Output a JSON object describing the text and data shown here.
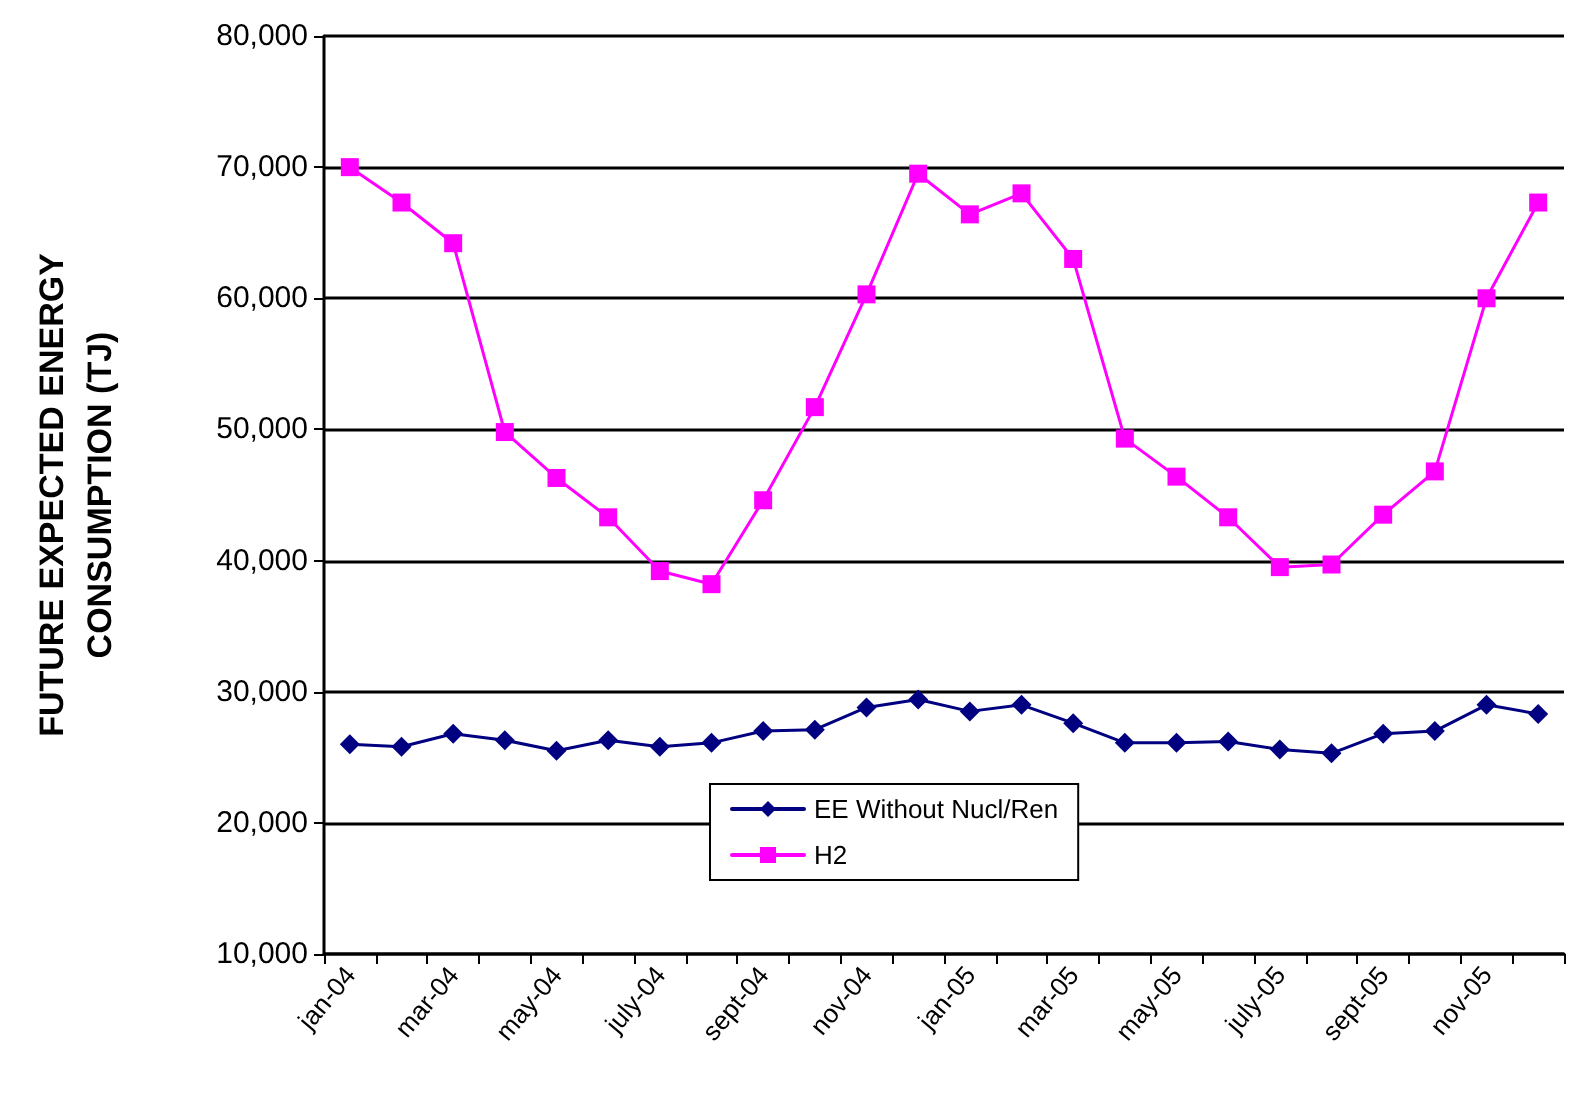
{
  "chart_data": {
    "type": "line",
    "ylabel": "FUTURE EXPECTED ENERGY\nCONSUMPTION (TJ)",
    "categories": [
      "jan-04",
      null,
      "mar-04",
      null,
      "may-04",
      null,
      "july-04",
      null,
      "sept-04",
      null,
      "nov-04",
      null,
      "jan-05",
      null,
      "mar-05",
      null,
      "may-05",
      null,
      "july-05",
      null,
      "sept-05",
      null,
      "nov-05",
      null
    ],
    "series": [
      {
        "name": "EE Without Nucl/Ren",
        "color": "#000080",
        "marker": "diamond",
        "values": [
          26000,
          25800,
          26800,
          26300,
          25500,
          26300,
          25800,
          26100,
          27000,
          27100,
          28800,
          29400,
          28500,
          29000,
          27600,
          26100,
          26100,
          26200,
          25600,
          25300,
          26800,
          27000,
          29000,
          28300
        ]
      },
      {
        "name": "H2",
        "color": "#ff00ff",
        "marker": "square",
        "values": [
          70000,
          67300,
          64200,
          49800,
          46300,
          43300,
          39200,
          38200,
          44600,
          51700,
          60300,
          69500,
          66400,
          68000,
          63000,
          49300,
          46400,
          43300,
          39500,
          39700,
          43500,
          46800,
          60000,
          67300
        ]
      }
    ],
    "ylim": [
      10000,
      80000
    ],
    "yticks": [
      {
        "value": 10000,
        "label": "10,000"
      },
      {
        "value": 20000,
        "label": "20,000"
      },
      {
        "value": 30000,
        "label": "30,000"
      },
      {
        "value": 40000,
        "label": "40,000"
      },
      {
        "value": 50000,
        "label": "50,000"
      },
      {
        "value": 60000,
        "label": "60,000"
      },
      {
        "value": 70000,
        "label": "70,000"
      },
      {
        "value": 80000,
        "label": "80,000"
      }
    ],
    "grid": "y",
    "legend": "bottom",
    "line_style": "solid"
  }
}
